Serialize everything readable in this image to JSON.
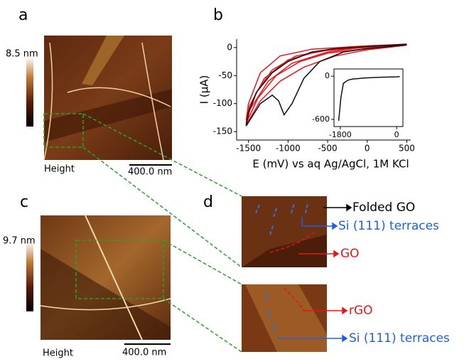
{
  "panels": {
    "a": {
      "label": "a",
      "colorbar": "8.5 nm",
      "mode": "Height",
      "scale": "400.0 nm"
    },
    "b": {
      "label": "b"
    },
    "c": {
      "label": "c",
      "colorbar": "9.7 nm",
      "mode": "Height",
      "scale": "400.0 nm"
    },
    "d": {
      "label": "d",
      "top": [
        "Folded GO",
        "Si (111) terraces",
        "GO"
      ],
      "bottom": [
        "rGO",
        "Si (111) terraces"
      ]
    }
  },
  "chart_data": [
    {
      "type": "line",
      "ylabel": "I (µA)",
      "xlabel": "E (mV) vs aq Ag/AgCl, 1M KCl",
      "xlim": [
        -1650,
        550
      ],
      "ylim": [
        -165,
        15
      ],
      "xticks": [
        -1500,
        -1000,
        -500,
        0,
        500
      ],
      "yticks": [
        0,
        -50,
        -100,
        -150
      ],
      "series": [
        {
          "color": "#e8141b",
          "x": [
            500,
            0,
            -500,
            -900,
            -1200,
            -1400,
            -1530,
            -1500,
            -1350,
            -1100,
            -700,
            0,
            500
          ],
          "values": [
            5,
            0,
            -5,
            -15,
            -40,
            -80,
            -130,
            -100,
            -45,
            -15,
            -3,
            3,
            6
          ]
        },
        {
          "color": "#e8141b",
          "x": [
            500,
            0,
            -500,
            -850,
            -1150,
            -1380,
            -1530,
            -1490,
            -1300,
            -1000,
            -600,
            0,
            500
          ],
          "values": [
            5,
            -2,
            -10,
            -25,
            -50,
            -90,
            -135,
            -105,
            -55,
            -22,
            -6,
            2,
            6
          ]
        },
        {
          "color": "#e8141b",
          "x": [
            500,
            0,
            -400,
            -800,
            -1100,
            -1350,
            -1530,
            -1480,
            -1250,
            -950,
            -500,
            0,
            500
          ],
          "values": [
            4,
            -4,
            -15,
            -35,
            -60,
            -95,
            -138,
            -110,
            -60,
            -28,
            -8,
            1,
            5
          ]
        },
        {
          "color": "#111111",
          "x": [
            500,
            300,
            0,
            -300,
            -600,
            -800,
            -950,
            -1050,
            -1120,
            -1200,
            -1350,
            -1530,
            -1500,
            -1400,
            -1200,
            -1000,
            -700,
            -400,
            0,
            300,
            500
          ],
          "values": [
            5,
            2,
            -2,
            -8,
            -25,
            -55,
            -100,
            -120,
            -95,
            -85,
            -100,
            -140,
            -115,
            -80,
            -45,
            -25,
            -8,
            -2,
            2,
            4,
            6
          ]
        }
      ]
    },
    {
      "type": "line",
      "xlim": [
        -2000,
        200
      ],
      "ylim": [
        -700,
        100
      ],
      "xticks": [
        -1800,
        0
      ],
      "yticks": [
        0,
        -600
      ],
      "series": [
        {
          "color": "#111111",
          "x": [
            -1850,
            -1780,
            -1700,
            -1550,
            -1400,
            -1000,
            -500,
            0,
            100
          ],
          "values": [
            -620,
            -300,
            -100,
            -55,
            -40,
            -25,
            -15,
            -10,
            -5
          ]
        }
      ]
    }
  ]
}
